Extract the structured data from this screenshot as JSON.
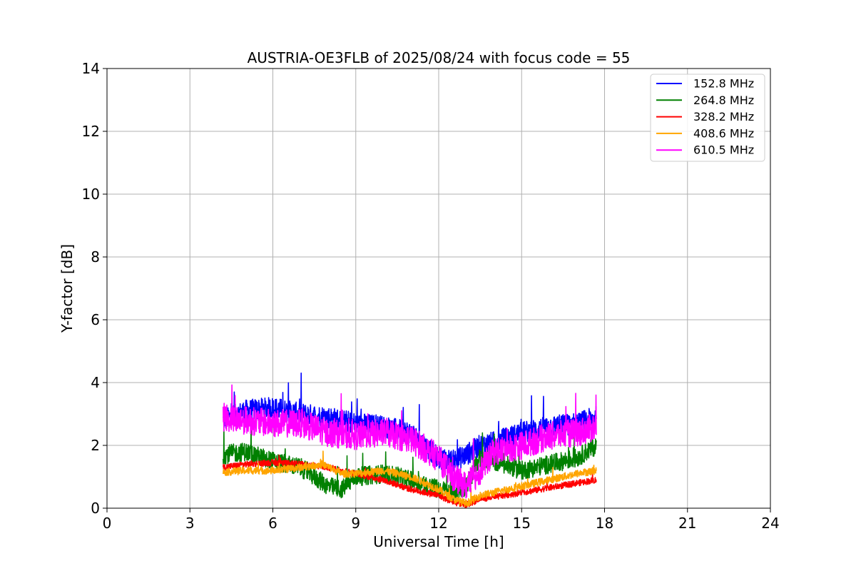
{
  "chart_data": {
    "type": "line",
    "title": "AUSTRIA-OE3FLB of 2025/08/24 with focus code = 55",
    "xlabel": "Universal Time [h]",
    "ylabel": "Y-factor [dB]",
    "xlim": [
      0,
      24
    ],
    "ylim": [
      0,
      14
    ],
    "xticks": [
      0,
      3,
      6,
      9,
      12,
      15,
      18,
      21,
      24
    ],
    "yticks": [
      0,
      2,
      4,
      6,
      8,
      10,
      12,
      14
    ],
    "xtick_labels": [
      "0",
      "3",
      "6",
      "9",
      "12",
      "15",
      "18",
      "21",
      "24"
    ],
    "ytick_labels": [
      "0",
      "2",
      "4",
      "6",
      "8",
      "10",
      "12",
      "14"
    ],
    "grid": true,
    "legend_position": "top-right",
    "series": [
      {
        "name": "152.8 MHz",
        "color": "#0000ff",
        "x": [
          4.2,
          5,
          6,
          7,
          8,
          9,
          10,
          11,
          12,
          12.5,
          13,
          13.5,
          14,
          15,
          16,
          17,
          17.7
        ],
        "y": [
          2.8,
          3.1,
          3.2,
          3.0,
          2.9,
          2.7,
          2.6,
          2.4,
          1.6,
          1.5,
          1.7,
          2.0,
          2.1,
          2.4,
          2.6,
          2.7,
          2.9
        ],
        "noise": 0.35
      },
      {
        "name": "264.8 MHz",
        "color": "#008000",
        "x": [
          4.2,
          5,
          6,
          7,
          8,
          8.5,
          9,
          10,
          11,
          12,
          12.5,
          13,
          13.5,
          14,
          15,
          16,
          17,
          17.7
        ],
        "y": [
          1.7,
          1.8,
          1.5,
          1.3,
          0.7,
          0.6,
          1.0,
          1.1,
          0.9,
          0.6,
          0.5,
          0.7,
          1.6,
          1.5,
          1.2,
          1.4,
          1.6,
          2.0
        ],
        "noise": 0.3
      },
      {
        "name": "328.2 MHz",
        "color": "#ff0000",
        "x": [
          4.2,
          5,
          6,
          7,
          8,
          9,
          10,
          11,
          12,
          12.5,
          13,
          13.5,
          14,
          15,
          16,
          17,
          17.7
        ],
        "y": [
          1.3,
          1.4,
          1.45,
          1.4,
          1.3,
          1.1,
          0.9,
          0.6,
          0.4,
          0.2,
          0.1,
          0.3,
          0.35,
          0.5,
          0.65,
          0.8,
          0.9
        ],
        "noise": 0.1
      },
      {
        "name": "408.6 MHz",
        "color": "#ffa500",
        "x": [
          4.2,
          5,
          6,
          7,
          7.8,
          8.5,
          9,
          10,
          11,
          12,
          12.5,
          13,
          13.5,
          14,
          15,
          16,
          17,
          17.7
        ],
        "y": [
          1.15,
          1.2,
          1.2,
          1.3,
          1.4,
          1.1,
          1.1,
          1.2,
          1.0,
          0.6,
          0.3,
          0.15,
          0.4,
          0.5,
          0.7,
          0.9,
          1.1,
          1.2
        ],
        "noise": 0.12
      },
      {
        "name": "610.5 MHz",
        "color": "#ff00ff",
        "x": [
          4.2,
          5,
          6,
          7,
          8,
          9,
          10,
          11,
          12,
          12.5,
          13,
          13.5,
          14,
          15,
          16,
          17,
          17.7
        ],
        "y": [
          2.9,
          2.8,
          2.7,
          2.7,
          2.4,
          2.3,
          2.4,
          2.2,
          1.6,
          1.0,
          0.7,
          1.2,
          1.8,
          2.0,
          2.3,
          2.4,
          2.6
        ],
        "noise": 0.45
      }
    ]
  }
}
